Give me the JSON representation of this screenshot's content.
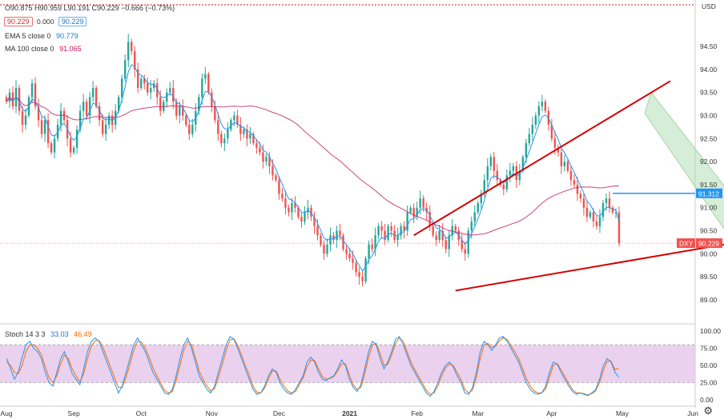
{
  "header": {
    "ohlc": "O90.875 H90.959 L90.191 C90.229 −0.666 (−0.73%)",
    "price_box": "90.229",
    "change_box": "0.000",
    "price_box2": "90.229",
    "ema_label": "EMA 5 close 0",
    "ema_value": "90.779",
    "ma_label": "MA 100 close 0",
    "ma_value": "91.065"
  },
  "colors": {
    "up": "#26a69a",
    "down": "#ef5350",
    "ema": "#2196f3",
    "ma": "#c2185b",
    "trend": "#d50000",
    "hline": "#2196f3",
    "channel": "#a5d6a7",
    "stoch_k": "#2196f3",
    "stoch_d": "#ff6d00",
    "stoch_band": "#e1bee7"
  },
  "chart_data": [
    {
      "type": "candlestick",
      "symbol": "DXY",
      "currency": "USD",
      "x_labels": [
        "Aug",
        "Sep",
        "Oct",
        "Nov",
        "Dec",
        "2021",
        "Feb",
        "Mar",
        "Apr",
        "May",
        "Jun"
      ],
      "y_ticks": [
        "94.50",
        "94.00",
        "93.50",
        "93.00",
        "92.50",
        "92.00",
        "91.50",
        "91.00",
        "90.50",
        "90.00",
        "89.50",
        "89.00"
      ],
      "ylim": [
        88.6,
        95.3
      ],
      "last_price": "90.229",
      "last_price_label": "DXY",
      "hline_label": "91.312",
      "closes": [
        93.3,
        93.5,
        93.2,
        93.6,
        93.1,
        92.8,
        93.0,
        93.4,
        93.7,
        93.2,
        92.9,
        92.6,
        92.9,
        92.4,
        92.2,
        92.5,
        92.8,
        93.1,
        92.9,
        92.5,
        92.2,
        92.3,
        92.7,
        93.1,
        93.3,
        93.0,
        93.4,
        93.6,
        93.2,
        92.9,
        92.6,
        92.8,
        93.0,
        92.8,
        93.1,
        93.4,
        93.8,
        94.2,
        94.6,
        94.4,
        94.0,
        93.6,
        93.8,
        93.7,
        93.5,
        93.6,
        93.7,
        93.4,
        93.1,
        93.3,
        93.5,
        93.6,
        93.3,
        93.0,
        93.2,
        93.0,
        92.8,
        92.6,
        92.8,
        93.1,
        93.4,
        93.8,
        93.9,
        93.5,
        93.2,
        92.9,
        92.6,
        92.4,
        92.5,
        92.7,
        92.9,
        93.0,
        92.8,
        92.6,
        92.7,
        92.5,
        92.6,
        92.4,
        92.3,
        92.2,
        92.0,
        92.1,
        91.9,
        91.7,
        91.6,
        91.3,
        91.2,
        91.0,
        90.9,
        91.1,
        91.0,
        90.8,
        90.7,
        90.9,
        91.0,
        90.8,
        90.6,
        90.4,
        90.2,
        90.0,
        90.2,
        90.4,
        90.3,
        90.5,
        90.4,
        90.1,
        90.0,
        89.9,
        89.8,
        89.6,
        89.5,
        89.4,
        89.9,
        90.2,
        90.1,
        90.4,
        90.6,
        90.5,
        90.3,
        90.6,
        90.5,
        90.3,
        90.4,
        90.6,
        90.5,
        90.9,
        91.0,
        90.8,
        91.0,
        91.2,
        91.0,
        90.9,
        90.6,
        90.4,
        90.3,
        90.5,
        90.3,
        90.1,
        90.4,
        90.6,
        90.5,
        90.3,
        90.1,
        90.0,
        90.5,
        90.7,
        90.9,
        91.1,
        91.3,
        91.6,
        91.9,
        92.1,
        91.8,
        91.6,
        91.5,
        91.4,
        91.7,
        91.8,
        91.9,
        91.6,
        91.8,
        92.1,
        92.4,
        92.6,
        92.8,
        93.0,
        93.2,
        93.3,
        93.1,
        92.8,
        92.5,
        92.3,
        92.2,
        91.9,
        92.0,
        91.8,
        91.6,
        91.5,
        91.3,
        91.2,
        91.0,
        90.8,
        90.9,
        90.7,
        90.6,
        90.8,
        91.1,
        91.2,
        91.0,
        90.9,
        90.9,
        90.23
      ],
      "ema": {
        "name": "EMA 5 close 0",
        "value": "90.779"
      },
      "ma": {
        "name": "MA 100 close 0",
        "value": "91.065"
      },
      "trendlines": [
        {
          "from": [
            140,
            89.2
          ],
          "to": [
            247,
            90.48
          ]
        },
        {
          "from": [
            127,
            90.4
          ],
          "to": [
            207,
            93.75
          ]
        }
      ],
      "hline": {
        "from": 189,
        "value": 91.312
      },
      "channel": {
        "upper": [
          [
            201,
            93.5
          ],
          [
            228,
            91.1
          ]
        ],
        "lower": [
          [
            199,
            93.05
          ],
          [
            231,
            89.8
          ]
        ]
      }
    },
    {
      "type": "line",
      "title": "Stoch 14 3 3",
      "k_value": "33.03",
      "d_value": "46.49",
      "y_ticks": [
        "100.00",
        "75.00",
        "50.00",
        "25.00",
        "0.00"
      ],
      "ylim": [
        0,
        100
      ],
      "bands": [
        25,
        80
      ],
      "k": [
        60,
        45,
        30,
        40,
        62,
        80,
        85,
        75,
        70,
        60,
        40,
        25,
        20,
        40,
        60,
        70,
        55,
        38,
        30,
        22,
        45,
        70,
        85,
        90,
        85,
        70,
        55,
        40,
        25,
        10,
        20,
        40,
        60,
        80,
        90,
        80,
        70,
        55,
        40,
        30,
        20,
        10,
        8,
        15,
        35,
        60,
        80,
        90,
        75,
        55,
        35,
        25,
        15,
        10,
        20,
        40,
        60,
        80,
        92,
        88,
        75,
        60,
        45,
        30,
        15,
        8,
        10,
        20,
        35,
        45,
        40,
        25,
        15,
        10,
        8,
        15,
        25,
        35,
        55,
        62,
        55,
        40,
        30,
        28,
        32,
        35,
        45,
        58,
        50,
        30,
        18,
        12,
        22,
        45,
        70,
        85,
        80,
        60,
        45,
        55,
        70,
        88,
        92,
        80,
        65,
        50,
        40,
        30,
        20,
        10,
        5,
        12,
        25,
        40,
        50,
        55,
        48,
        35,
        25,
        10,
        8,
        18,
        40,
        70,
        85,
        80,
        72,
        80,
        90,
        92,
        85,
        75,
        65,
        55,
        40,
        25,
        15,
        10,
        8,
        10,
        20,
        40,
        55,
        52,
        40,
        30,
        20,
        12,
        8,
        10,
        8,
        6,
        10,
        15,
        30,
        50,
        60,
        55,
        40,
        33
      ],
      "d": [
        55,
        50,
        40,
        38,
        50,
        70,
        80,
        80,
        75,
        65,
        48,
        32,
        25,
        35,
        52,
        65,
        60,
        45,
        35,
        26,
        38,
        60,
        78,
        86,
        86,
        76,
        62,
        47,
        32,
        18,
        18,
        33,
        52,
        72,
        85,
        84,
        75,
        62,
        47,
        35,
        24,
        14,
        10,
        12,
        28,
        50,
        72,
        85,
        80,
        62,
        42,
        30,
        20,
        13,
        16,
        33,
        52,
        72,
        87,
        89,
        79,
        65,
        50,
        36,
        20,
        11,
        10,
        17,
        30,
        42,
        42,
        30,
        20,
        13,
        10,
        12,
        22,
        32,
        48,
        58,
        57,
        45,
        34,
        30,
        31,
        34,
        42,
        52,
        52,
        36,
        22,
        15,
        18,
        38,
        62,
        80,
        82,
        67,
        50,
        52,
        65,
        82,
        90,
        85,
        70,
        55,
        44,
        34,
        24,
        14,
        8,
        10,
        20,
        35,
        46,
        52,
        50,
        40,
        30,
        15,
        10,
        14,
        33,
        60,
        80,
        82,
        76,
        78,
        86,
        90,
        88,
        79,
        70,
        60,
        46,
        31,
        20,
        13,
        10,
        10,
        16,
        33,
        50,
        53,
        44,
        34,
        24,
        15,
        10,
        10,
        9,
        7,
        9,
        13,
        25,
        43,
        56,
        56,
        44,
        46
      ]
    }
  ]
}
